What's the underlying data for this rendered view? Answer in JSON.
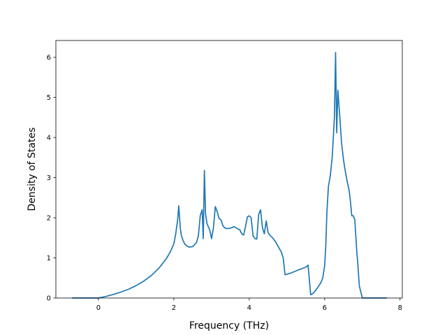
{
  "chart_data": {
    "type": "line",
    "title": "",
    "xlabel": "Frequency (THz)",
    "ylabel": "Density of States",
    "xlim": [
      -1.13,
      8.06
    ],
    "ylim": [
      0,
      6.42
    ],
    "xticks": [
      0,
      2,
      4,
      6,
      8
    ],
    "yticks": [
      0,
      1,
      2,
      3,
      4,
      5,
      6
    ],
    "grid": false,
    "legend": "none",
    "colors": {
      "line": "#1f77b4",
      "axes": "#000000",
      "background": "#ffffff"
    },
    "series": [
      {
        "x": [
          -0.7,
          -0.3,
          0.0,
          0.1,
          0.2,
          0.4,
          0.6,
          0.8,
          1.0,
          1.2,
          1.4,
          1.6,
          1.8,
          1.9,
          2.0,
          2.05,
          2.1,
          2.13,
          2.17,
          2.2,
          2.25,
          2.3,
          2.4,
          2.5,
          2.6,
          2.65,
          2.7,
          2.75,
          2.78,
          2.81,
          2.84,
          2.88,
          2.95,
          3.0,
          3.05,
          3.1,
          3.15,
          3.2,
          3.25,
          3.3,
          3.35,
          3.4,
          3.5,
          3.6,
          3.7,
          3.75,
          3.8,
          3.85,
          3.9,
          3.95,
          4.0,
          4.05,
          4.1,
          4.15,
          4.2,
          4.25,
          4.3,
          4.35,
          4.4,
          4.45,
          4.5,
          4.55,
          4.6,
          4.7,
          4.8,
          4.85,
          4.9,
          4.95,
          5.1,
          5.3,
          5.5,
          5.56,
          5.63,
          5.7,
          5.8,
          5.9,
          5.95,
          6.0,
          6.03,
          6.06,
          6.1,
          6.15,
          6.2,
          6.23,
          6.26,
          6.29,
          6.32,
          6.35,
          6.4,
          6.45,
          6.5,
          6.55,
          6.6,
          6.65,
          6.68,
          6.72,
          6.76,
          6.8,
          6.85,
          6.88,
          6.92,
          7.0,
          7.3,
          7.65
        ],
        "y": [
          0,
          0,
          0,
          0.02,
          0.04,
          0.09,
          0.15,
          0.22,
          0.31,
          0.42,
          0.56,
          0.74,
          0.98,
          1.14,
          1.35,
          1.6,
          1.95,
          2.3,
          1.75,
          1.55,
          1.42,
          1.33,
          1.27,
          1.28,
          1.38,
          1.55,
          2.05,
          2.2,
          1.48,
          3.18,
          2.1,
          1.85,
          1.7,
          1.48,
          1.75,
          2.28,
          2.15,
          1.98,
          1.95,
          1.8,
          1.75,
          1.73,
          1.74,
          1.78,
          1.72,
          1.7,
          1.6,
          1.57,
          1.78,
          2.02,
          2.05,
          2.0,
          1.55,
          1.48,
          1.47,
          2.08,
          2.2,
          1.75,
          1.6,
          1.92,
          1.63,
          1.56,
          1.52,
          1.4,
          1.23,
          1.15,
          1.0,
          0.58,
          0.62,
          0.7,
          0.77,
          0.82,
          0.08,
          0.12,
          0.24,
          0.38,
          0.5,
          0.8,
          1.3,
          2.15,
          2.78,
          3.05,
          3.5,
          4.0,
          4.52,
          6.12,
          4.12,
          5.18,
          4.55,
          3.85,
          3.45,
          3.15,
          2.9,
          2.68,
          2.45,
          2.05,
          2.05,
          1.95,
          1.2,
          0.85,
          0.3,
          0,
          0,
          0
        ]
      }
    ]
  }
}
